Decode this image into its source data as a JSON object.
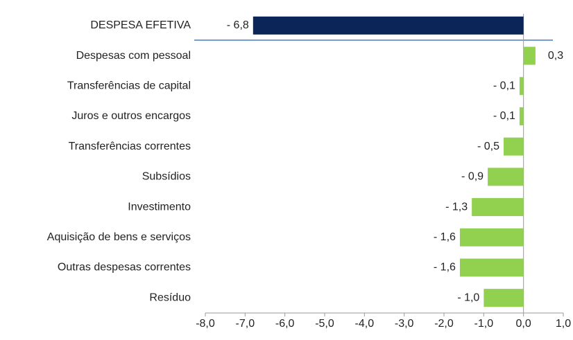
{
  "chart_data": {
    "type": "hbar",
    "categories": [
      "DESPESA EFETIVA",
      "Despesas com pessoal",
      "Transferências de capital",
      "Juros e outros encargos",
      "Transferências correntes",
      "Subsídios",
      "Investimento",
      "Aquisição de bens e serviços",
      "Outras despesas correntes",
      "Resíduo"
    ],
    "values": [
      -6.8,
      0.3,
      -0.1,
      -0.1,
      -0.5,
      -0.9,
      -1.3,
      -1.6,
      -1.6,
      -1.0
    ],
    "value_labels": [
      "- 6,8",
      "0,3",
      "- 0,1",
      "- 0,1",
      "- 0,5",
      "- 0,9",
      "- 1,3",
      "- 1,6",
      "- 1,6",
      "- 1,0"
    ],
    "colors": [
      "#0b2559",
      "#92d050",
      "#92d050",
      "#92d050",
      "#92d050",
      "#92d050",
      "#92d050",
      "#92d050",
      "#92d050",
      "#92d050"
    ],
    "xlim": [
      -8,
      1
    ],
    "xticks": [
      {
        "value": -8,
        "label": "-8,0"
      },
      {
        "value": -7,
        "label": "-7,0"
      },
      {
        "value": -6,
        "label": "-6,0"
      },
      {
        "value": -5,
        "label": "-5,0"
      },
      {
        "value": -4,
        "label": "-4,0"
      },
      {
        "value": -3,
        "label": "-3,0"
      },
      {
        "value": -2,
        "label": "-2,0"
      },
      {
        "value": -1,
        "label": "-1,0"
      },
      {
        "value": 0,
        "label": "0,0"
      },
      {
        "value": 1,
        "label": "1,0"
      }
    ]
  }
}
